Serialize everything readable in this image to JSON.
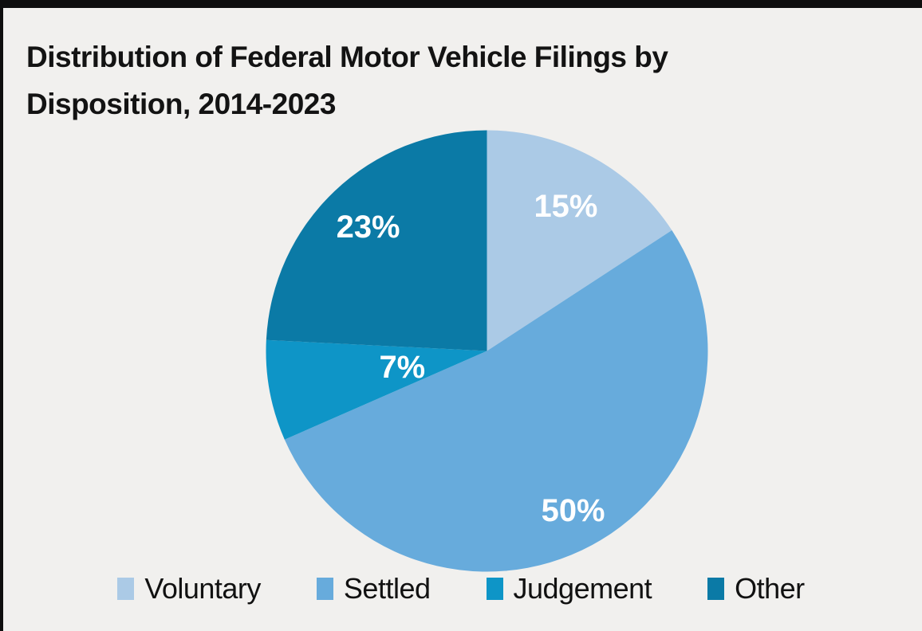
{
  "page": {
    "background_color": "#f1f0ee",
    "frame_color": "#0e0e0e"
  },
  "title": {
    "lines": [
      "Distribution of Federal Motor Vehicle Filings by",
      "Disposition, 2014-2023"
    ]
  },
  "chart_data": {
    "type": "pie",
    "title": "Distribution of Federal Motor Vehicle Filings by Disposition, 2014-2023",
    "unit": "percent",
    "start_angle_deg": 0,
    "direction": "clockwise",
    "slice_label_color": "#ffffff",
    "legend_position": "bottom",
    "slices": [
      {
        "label": "Voluntary",
        "value": 15,
        "display": "15%",
        "color": "#abcae6"
      },
      {
        "label": "Settled",
        "value": 50,
        "display": "50%",
        "color": "#67abdc"
      },
      {
        "label": "Judgement",
        "value": 7,
        "display": "7%",
        "color": "#0e95c7"
      },
      {
        "label": "Other",
        "value": 23,
        "display": "23%",
        "color": "#0b7aa6"
      }
    ]
  }
}
